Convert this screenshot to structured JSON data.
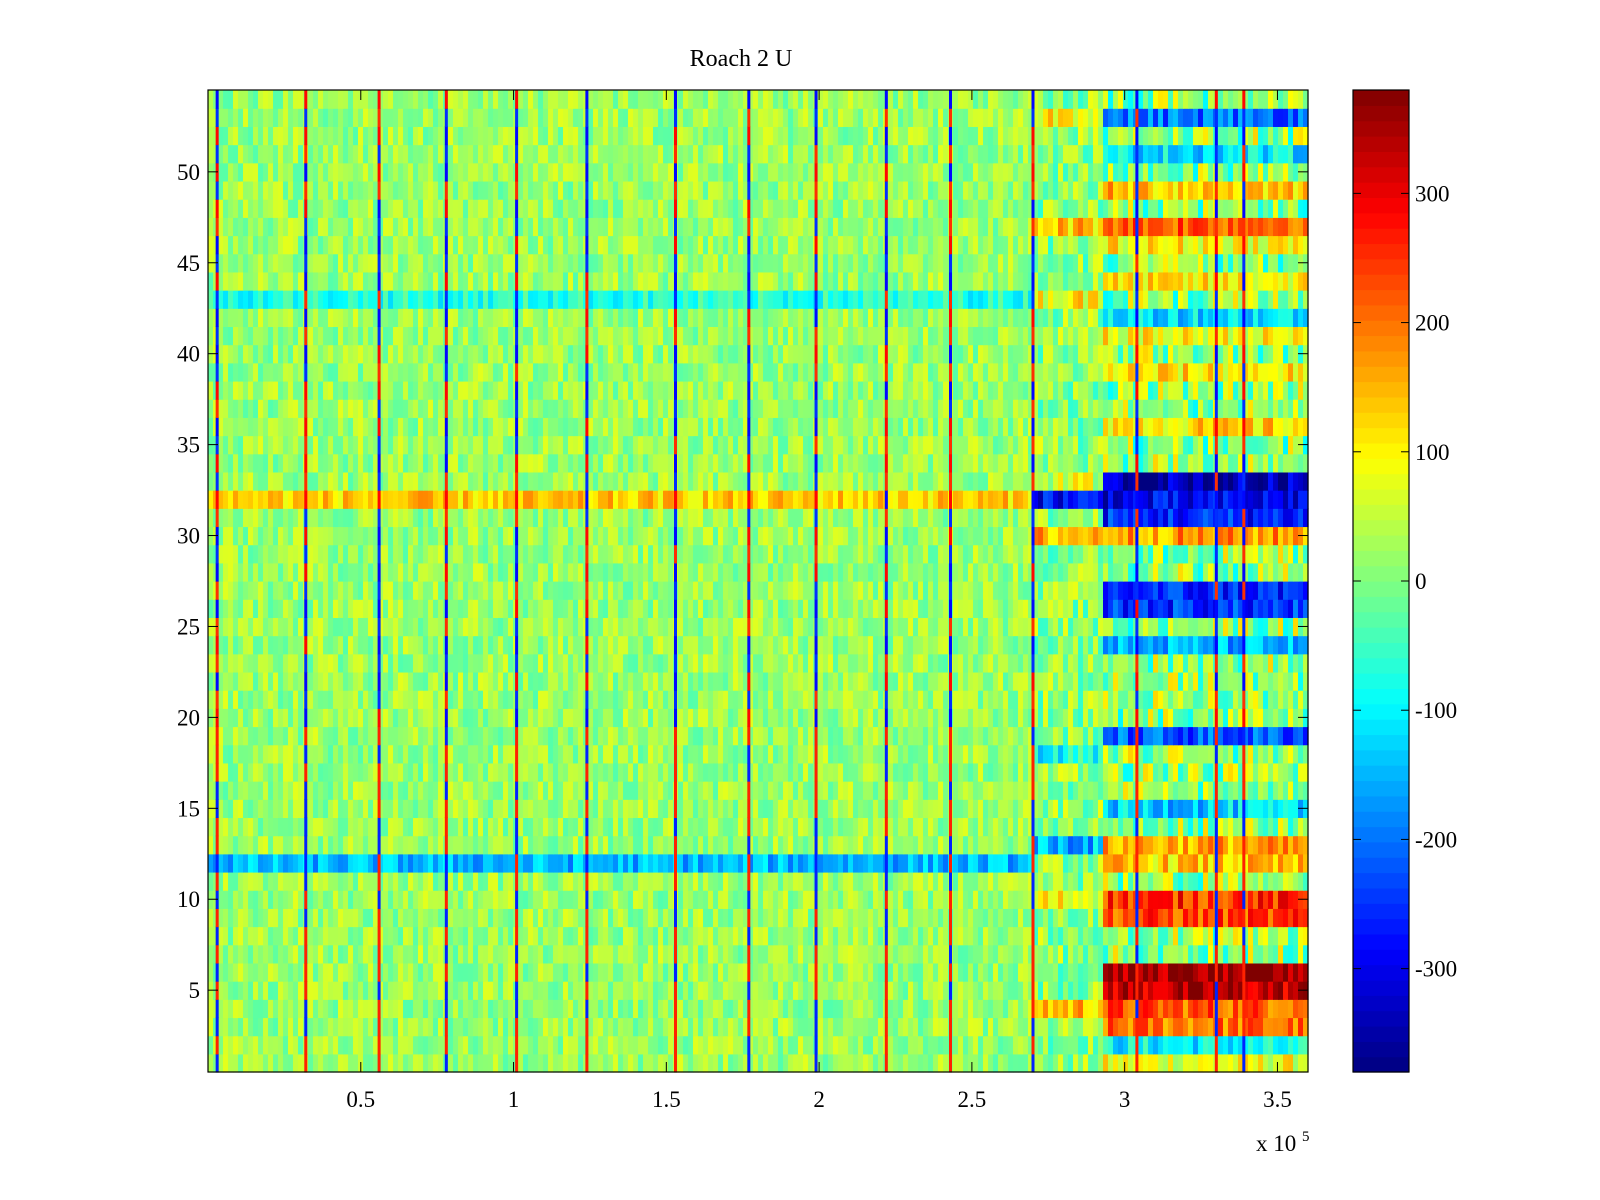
{
  "chart_data": {
    "type": "heatmap",
    "title": "Roach 2 U",
    "xlabel": "",
    "ylabel": "",
    "x_multiplier": "x 10",
    "x_multiplier_exponent": "5",
    "xlim": [
      0,
      3.6
    ],
    "ylim": [
      0.5,
      54.5
    ],
    "x_ticks": [
      0.5,
      1,
      1.5,
      2,
      2.5,
      3,
      3.5
    ],
    "x_tick_labels": [
      "0.5",
      "1",
      "1.5",
      "2",
      "2.5",
      "3",
      "3.5"
    ],
    "y_ticks": [
      5,
      10,
      15,
      20,
      25,
      30,
      35,
      40,
      45,
      50
    ],
    "y_tick_labels": [
      "5",
      "10",
      "15",
      "20",
      "25",
      "30",
      "35",
      "40",
      "45",
      "50"
    ],
    "colormap": "jet",
    "clim": [
      -380,
      380
    ],
    "colorbar_ticks": [
      300,
      200,
      100,
      0,
      -100,
      -200,
      -300
    ],
    "colorbar_tick_labels": [
      "300",
      "200",
      "100",
      "0",
      "-100",
      "-200",
      "-300"
    ],
    "rows": 54,
    "typical_background_value": 20,
    "periodic_spike_columns_x": [
      0.03,
      0.32,
      0.56,
      0.78,
      1.01,
      1.24,
      1.53,
      1.77,
      1.99,
      2.22,
      2.43,
      2.7,
      3.04,
      3.3,
      3.39
    ],
    "region_boundaries_x": [
      2.7,
      2.93
    ],
    "row_value_estimates_region_2_93_to_3_6": [
      {
        "row": 1,
        "value": 80
      },
      {
        "row": 2,
        "value": -100
      },
      {
        "row": 3,
        "value": 200
      },
      {
        "row": 4,
        "value": 220
      },
      {
        "row": 5,
        "value": 330
      },
      {
        "row": 6,
        "value": 360
      },
      {
        "row": 9,
        "value": 230
      },
      {
        "row": 10,
        "value": 250
      },
      {
        "row": 12,
        "value": 130
      },
      {
        "row": 13,
        "value": 160
      },
      {
        "row": 15,
        "value": -130
      },
      {
        "row": 19,
        "value": -220
      },
      {
        "row": 24,
        "value": -160
      },
      {
        "row": 26,
        "value": -250
      },
      {
        "row": 27,
        "value": -260
      },
      {
        "row": 30,
        "value": 170
      },
      {
        "row": 31,
        "value": -260
      },
      {
        "row": 32,
        "value": -300
      },
      {
        "row": 33,
        "value": -340
      },
      {
        "row": 36,
        "value": 120
      },
      {
        "row": 39,
        "value": 110
      },
      {
        "row": 41,
        "value": 90
      },
      {
        "row": 42,
        "value": -110
      },
      {
        "row": 44,
        "value": 100
      },
      {
        "row": 46,
        "value": 100
      },
      {
        "row": 47,
        "value": 230
      },
      {
        "row": 49,
        "value": 140
      },
      {
        "row": 51,
        "value": -110
      },
      {
        "row": 53,
        "value": -200
      }
    ],
    "row_value_estimates_region_2_70_to_2_93": [
      {
        "row": 4,
        "value": 150
      },
      {
        "row": 10,
        "value": 90
      },
      {
        "row": 13,
        "value": -150
      },
      {
        "row": 18,
        "value": -80
      },
      {
        "row": 30,
        "value": 150
      },
      {
        "row": 32,
        "value": -280
      },
      {
        "row": 33,
        "value": 60
      },
      {
        "row": 43,
        "value": 100
      },
      {
        "row": 47,
        "value": 140
      },
      {
        "row": 53,
        "value": 110
      }
    ],
    "row_value_estimates_region_0_to_2_70": [
      {
        "row": 12,
        "value": -150
      },
      {
        "row": 32,
        "value": 130
      },
      {
        "row": 43,
        "value": -70
      }
    ]
  }
}
